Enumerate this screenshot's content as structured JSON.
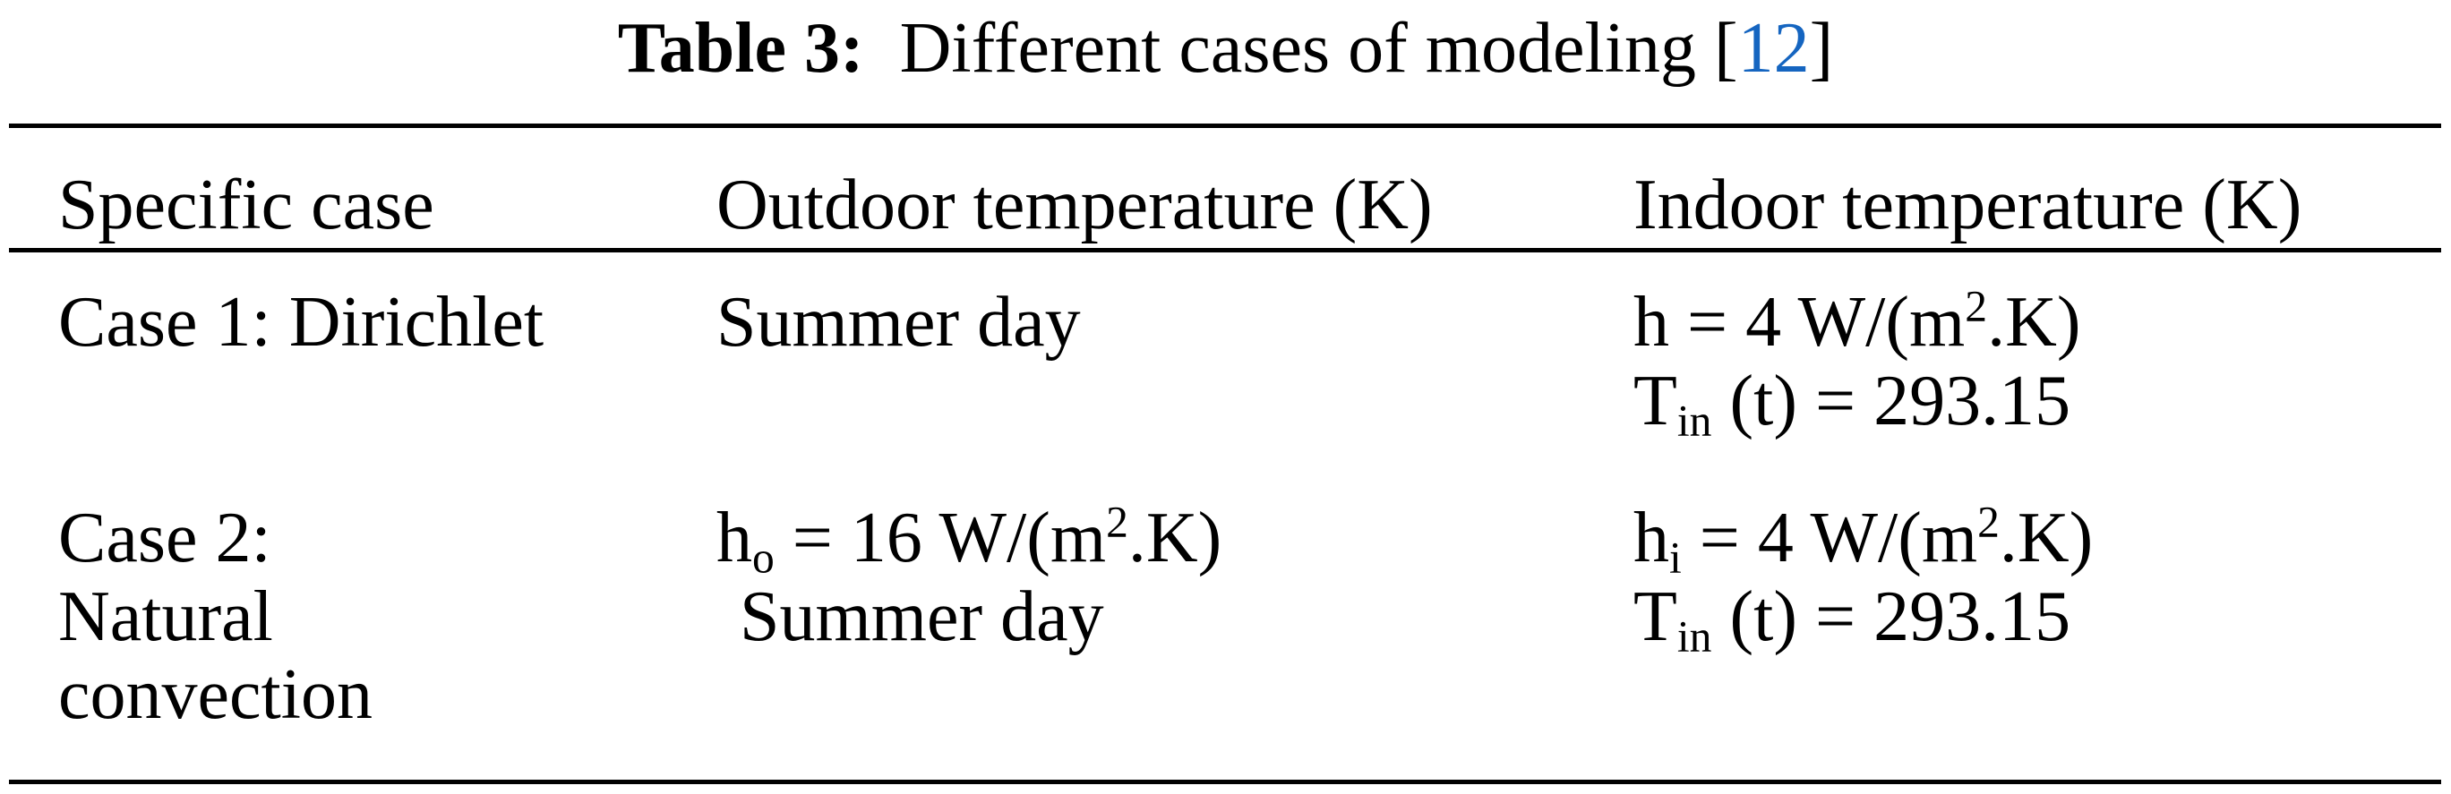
{
  "title": {
    "label": "Table 3:",
    "text": "Different cases of modeling [",
    "ref": "12",
    "close": "]",
    "ref_color": "#1565c0"
  },
  "table": {
    "headers": [
      "Specific case",
      "Outdoor temperature (K)",
      "Indoor temperature (K)"
    ],
    "rows": [
      {
        "case_lines": [
          "Case 1: Dirichlet"
        ],
        "outdoor": {
          "line1": "Summer day"
        },
        "indoor": {
          "h": {
            "base": "h",
            "sub": "",
            "pre": " = 4 W/(m",
            "sup": "2",
            "post": ".K)"
          },
          "t": {
            "base": "T",
            "sub": "in",
            "post": " (t) = 293.15"
          }
        }
      },
      {
        "case_lines": [
          "Case 2:",
          "Natural",
          "convection"
        ],
        "outdoor": {
          "h": {
            "base": "h",
            "sub": "o",
            "pre": " = 16 W/(m",
            "sup": "2",
            "post": ".K)"
          },
          "line2": "Summer day"
        },
        "indoor": {
          "h": {
            "base": "h",
            "sub": "i",
            "pre": " = 4 W/(m",
            "sup": "2",
            "post": ".K)"
          },
          "t": {
            "base": "T",
            "sub": "in",
            "post": " (t) = 293.15"
          }
        }
      }
    ]
  }
}
